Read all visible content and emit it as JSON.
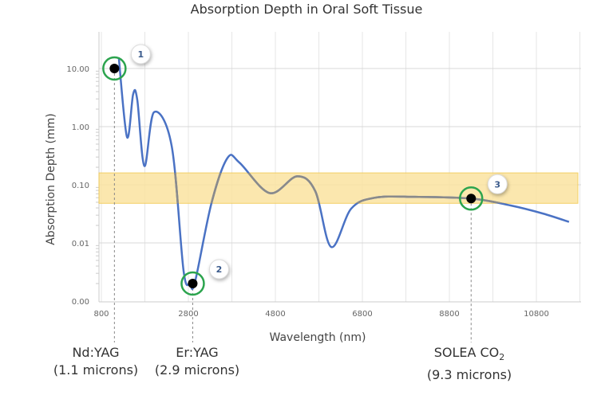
{
  "chart_data": {
    "type": "line",
    "title": "Absorption Depth in Oral Soft Tissue",
    "xlabel": "Wavelength (nm)",
    "ylabel": "Absorption Depth (mm)",
    "xlim": [
      800,
      11800
    ],
    "ylim": [
      0.001,
      30
    ],
    "yscale": "log",
    "x_ticks": [
      800,
      2800,
      4800,
      6800,
      8800,
      10800
    ],
    "y_ticks": [
      {
        "value": 10,
        "label": "10.00"
      },
      {
        "value": 1,
        "label": "1.00"
      },
      {
        "value": 0.1,
        "label": "0.10"
      },
      {
        "value": 0.01,
        "label": "0.01"
      },
      {
        "value": 0.001,
        "label": "0.00"
      }
    ],
    "grid": true,
    "series": [
      {
        "color": "#4a72c4",
        "x": [
          1200,
          1390,
          1530,
          1625,
          1790,
          2010,
          2415,
          2690,
          2840,
          2950,
          3330,
          3700,
          3975,
          4670,
          5300,
          5720,
          6085,
          6545,
          7095,
          8010,
          9300,
          10210,
          10950,
          11550
        ],
        "y": [
          15.5,
          0.66,
          3.6,
          2.9,
          0.21,
          1.77,
          0.47,
          0.0033,
          0.002,
          0.0021,
          0.048,
          0.29,
          0.24,
          0.072,
          0.14,
          0.077,
          0.0085,
          0.039,
          0.06,
          0.062,
          0.058,
          0.044,
          0.032,
          0.023
        ]
      }
    ],
    "band": {
      "y_range": [
        0.048,
        0.16
      ],
      "color": "#fbe3a0",
      "curve_color_inside": "#8a8a8a"
    },
    "markers": [
      {
        "label": "1",
        "x": 1100,
        "y": 10
      },
      {
        "label": "2",
        "x": 2900,
        "y": 0.002
      },
      {
        "label": "3",
        "x": 9300,
        "y": 0.058
      }
    ],
    "marker_ring_color": "#2ca44e"
  },
  "lasers": [
    {
      "name": "Nd:YAG",
      "detail": "(1.1 microns)"
    },
    {
      "name": "Er:YAG",
      "detail": "(2.9 microns)"
    },
    {
      "name": "SOLEA CO",
      "sub": "2",
      "detail": "(9.3 microns)"
    }
  ]
}
